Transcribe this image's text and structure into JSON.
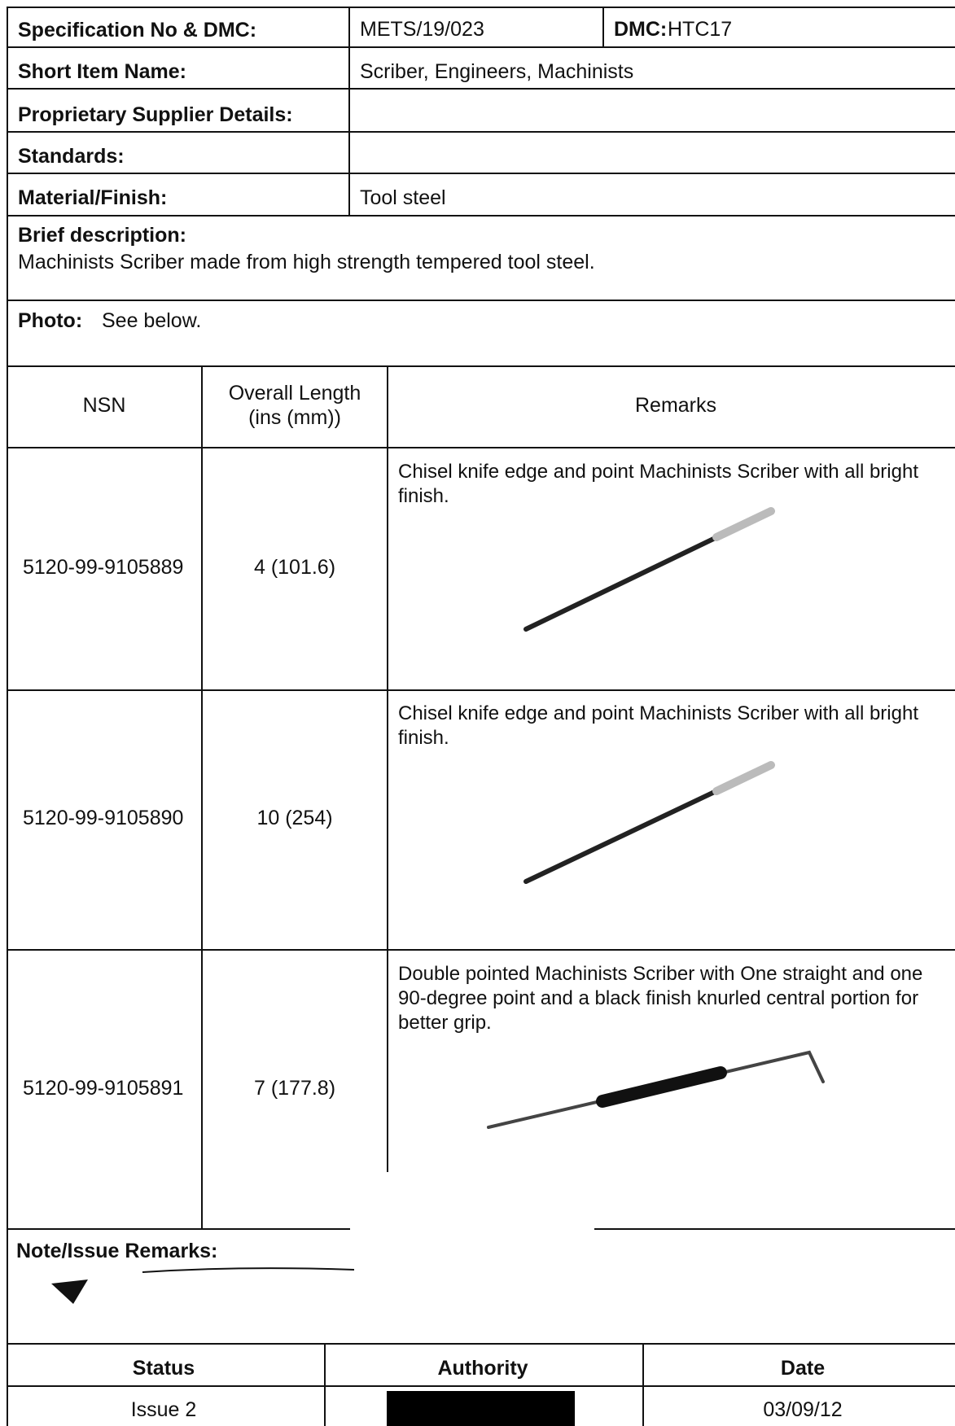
{
  "header": {
    "spec_label": "Specification No & DMC:",
    "spec_value": "METS/19/023",
    "dmc_label": "DMC:",
    "dmc_value": "HTC17"
  },
  "fields": [
    {
      "label": "Short Item Name:",
      "value": "Scriber, Engineers, Machinists"
    },
    {
      "label": "Proprietary Supplier Details:"
    },
    {
      "label": "Standards:"
    },
    {
      "label": "Material/Finish:",
      "value": "Tool steel"
    }
  ],
  "description": {
    "label": "Brief description:",
    "text": "Machinists Scriber made from high strength tempered tool steel."
  },
  "photo": {
    "label": "Photo:",
    "text": "See below."
  },
  "table": {
    "headers": [
      "NSN",
      "Overall Length (ins (mm))",
      "Remarks"
    ],
    "rows": [
      [
        "5120-99-9105889",
        "4 (101.6)",
        "Chisel knife edge and point Machinists Scriber with all bright finish."
      ],
      [
        "5120-99-9105890",
        "10 (254)",
        "Chisel knife edge and point Machinists Scriber with all bright finish."
      ],
      [
        "5120-99-9105891",
        "7 (177.8)",
        "Double pointed Machinists Scriber with One straight and one 90-degree point and a black finish knurled central portion for better grip."
      ]
    ]
  },
  "notes": {
    "label": "Note/Issue Remarks:"
  },
  "status_table": {
    "headers": [
      "Status",
      "Authority",
      "Date"
    ],
    "status": "Issue 2",
    "date": "03/09/12"
  }
}
